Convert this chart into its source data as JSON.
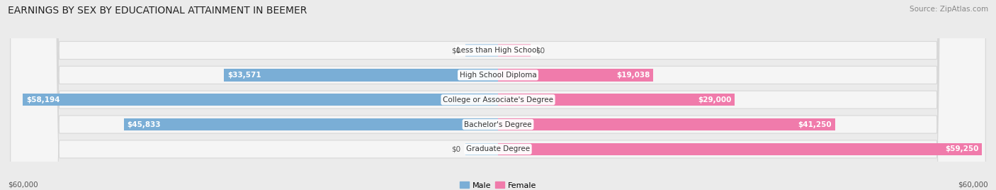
{
  "title": "EARNINGS BY SEX BY EDUCATIONAL ATTAINMENT IN BEEMER",
  "source": "Source: ZipAtlas.com",
  "categories": [
    "Less than High School",
    "High School Diploma",
    "College or Associate's Degree",
    "Bachelor's Degree",
    "Graduate Degree"
  ],
  "male_values": [
    0,
    33571,
    58194,
    45833,
    0
  ],
  "female_values": [
    0,
    19038,
    29000,
    41250,
    59250
  ],
  "male_labels": [
    "$0",
    "$33,571",
    "$58,194",
    "$45,833",
    "$0"
  ],
  "female_labels": [
    "$0",
    "$19,038",
    "$29,000",
    "$41,250",
    "$59,250"
  ],
  "max_value": 60000,
  "male_color": "#7aaed6",
  "female_color": "#f07bab",
  "male_color_light": "#b8d4ea",
  "female_color_light": "#f5b8d0",
  "bg_color": "#ebebeb",
  "row_bg_color": "#f5f5f5",
  "row_border_color": "#d8d8d8",
  "axis_label_left": "$60,000",
  "axis_label_right": "$60,000",
  "legend_male": "Male",
  "legend_female": "Female",
  "title_fontsize": 10,
  "source_fontsize": 7.5,
  "label_fontsize": 7.5,
  "category_fontsize": 7.5,
  "value_label_inside_color": "#ffffff",
  "value_label_outside_color": "#555555"
}
